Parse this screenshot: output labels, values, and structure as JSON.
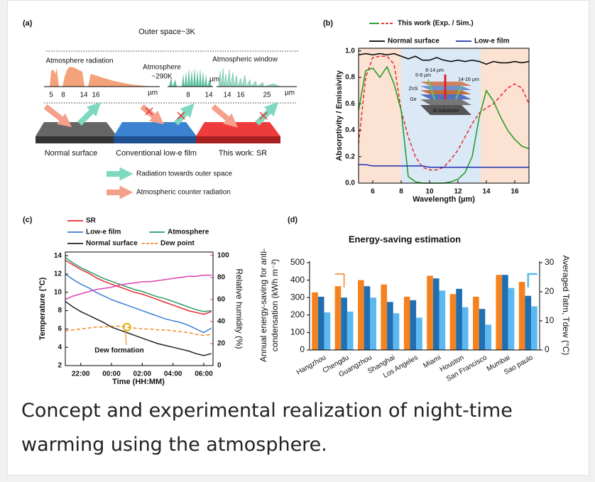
{
  "figure_a": {
    "panel_label": "(a)",
    "title": "Outer space~3K",
    "labels": {
      "atm_radiation": "Atmosphere radiation",
      "atmosphere": "Atmosphere",
      "atm_temp": "~290K",
      "window": "Atmospheric window"
    },
    "axis1": [
      "5",
      "8",
      "14",
      "16",
      "µm"
    ],
    "axis2": [
      "8",
      "14",
      "µm"
    ],
    "axis3": [
      "14",
      "16",
      "25",
      "µm"
    ],
    "surfaces": [
      "Normal surface",
      "Conventional low-e film",
      "This work: SR"
    ],
    "legend": [
      "Radiation towards outer space",
      "Atmospheric counter radiation"
    ]
  },
  "chart_data": [
    {
      "type": "line",
      "panel_label": "(b)",
      "xlabel": "Wavelength (µm)",
      "ylabel": "Absorptivity / Emissivity",
      "x": [
        5,
        5.5,
        6,
        6.5,
        7,
        7.5,
        8,
        8.5,
        9,
        9.5,
        10,
        10.5,
        11,
        11.5,
        12,
        12.5,
        13,
        13.5,
        14,
        14.5,
        15,
        15.5,
        16,
        16.5,
        17
      ],
      "xlim": [
        5,
        17
      ],
      "xticks": [
        6,
        8,
        10,
        12,
        14,
        16
      ],
      "ylim": [
        0,
        1.02
      ],
      "yticks": [
        {
          "value": 0,
          "label": "0.0"
        },
        0.2,
        0.4,
        0.6,
        0.8,
        {
          "value": 1,
          "label": "1.0"
        }
      ],
      "bands": [
        {
          "range": [
            5,
            8
          ],
          "color": "#fbe2d2"
        },
        {
          "range": [
            8,
            13.6
          ],
          "color": "#dbe8f5"
        },
        {
          "range": [
            13.6,
            17
          ],
          "color": "#fbe2d2"
        }
      ],
      "series": [
        {
          "name": "This work (Exp. / Sim.)",
          "color": "#1e9a1e",
          "values": [
            0.55,
            0.85,
            0.87,
            0.8,
            0.88,
            0.75,
            0.55,
            0.05,
            0.01,
            0,
            0,
            0,
            0,
            0.01,
            0.03,
            0.08,
            0.2,
            0.5,
            0.7,
            0.62,
            0.5,
            0.4,
            0.33,
            0.28,
            0.26
          ],
          "sim_color": "#e8262a",
          "sim_values": [
            0.3,
            0.8,
            0.95,
            0.96,
            0.96,
            0.9,
            0.55,
            0.35,
            0.2,
            0.12,
            0.1,
            0.1,
            0.12,
            0.18,
            0.25,
            0.35,
            0.45,
            0.53,
            0.57,
            0.6,
            0.66,
            0.72,
            0.75,
            0.72,
            0.6
          ]
        },
        {
          "name": "Normal surface",
          "color": "#000000",
          "values": [
            0.97,
            0.98,
            0.97,
            0.98,
            0.97,
            0.98,
            0.96,
            0.94,
            0.96,
            0.93,
            0.93,
            0.95,
            0.93,
            0.92,
            0.93,
            0.92,
            0.93,
            0.92,
            0.9,
            0.92,
            0.91,
            0.91,
            0.92,
            0.91,
            0.92
          ]
        },
        {
          "name": "Low-e film",
          "color": "#1f2fb0",
          "values": [
            0.14,
            0.14,
            0.13,
            0.13,
            0.13,
            0.13,
            0.13,
            0.13,
            0.13,
            0.13,
            0.12,
            0.12,
            0.12,
            0.12,
            0.12,
            0.12,
            0.12,
            0.12,
            0.12,
            0.12,
            0.12,
            0.12,
            0.12,
            0.12,
            0.12
          ]
        }
      ],
      "inset_labels": [
        "8-14 µm",
        "5-8 µm",
        "14-16 µm",
        "ZnS",
        "Ge",
        "Si substrate"
      ]
    },
    {
      "type": "line",
      "panel_label": "(c)",
      "xlabel": "Time (HH:MM)",
      "ylabel": "Temperature (°C)",
      "y2label": "Relative humidity (%)",
      "y2label_color": "#e040b0",
      "legend_text_colored": true,
      "x": [
        21,
        21.5,
        22,
        22.5,
        23,
        23.5,
        24,
        24.5,
        25,
        25.5,
        26,
        26.5,
        27,
        27.5,
        28,
        28.5,
        29,
        29.5,
        30,
        30.5
      ],
      "xlim": [
        21,
        30.6
      ],
      "xticks": [
        {
          "value": 22,
          "label": "22:00"
        },
        {
          "value": 24,
          "label": "00:00"
        },
        {
          "value": 26,
          "label": "02:00"
        },
        {
          "value": 28,
          "label": "04:00"
        },
        {
          "value": 30,
          "label": "06:00"
        }
      ],
      "ylim": [
        2,
        14.4
      ],
      "yticks": [
        2,
        4,
        6,
        8,
        10,
        12,
        14
      ],
      "y2lim": [
        0,
        103
      ],
      "y2ticks": [
        0,
        20,
        40,
        60,
        80,
        100
      ],
      "series": [
        {
          "name": "SR",
          "color": "#e8262a",
          "values": [
            13.5,
            13.0,
            12.5,
            12.1,
            11.6,
            11.2,
            10.9,
            10.6,
            10.3,
            10.0,
            9.8,
            9.5,
            9.2,
            8.9,
            8.6,
            8.3,
            8.0,
            7.8,
            7.6,
            7.9
          ]
        },
        {
          "name": "Low-e film",
          "color": "#3a7fd5",
          "values": [
            12.0,
            11.4,
            10.9,
            10.5,
            10.0,
            9.6,
            9.2,
            8.9,
            8.6,
            8.3,
            8.0,
            7.7,
            7.4,
            7.1,
            6.9,
            6.7,
            6.4,
            6.0,
            5.6,
            6.1
          ]
        },
        {
          "name": "Atmosphere",
          "color": "#2a9a6a",
          "values": [
            13.8,
            13.2,
            12.7,
            12.3,
            11.9,
            11.5,
            11.2,
            10.9,
            10.6,
            10.3,
            10.1,
            9.8,
            9.5,
            9.3,
            9.0,
            8.7,
            8.4,
            8.1,
            7.9,
            8.0
          ]
        },
        {
          "name": "Normal surface",
          "color": "#222222",
          "values": [
            9.0,
            8.4,
            7.9,
            7.5,
            7.1,
            6.7,
            6.2,
            5.9,
            5.6,
            5.3,
            5.0,
            4.7,
            4.4,
            4.2,
            4.0,
            3.8,
            3.6,
            3.3,
            3.1,
            3.3
          ]
        },
        {
          "name": "Dew point",
          "color": "#f08a24",
          "style": "dashed",
          "values": [
            5.8,
            5.9,
            6.0,
            6.1,
            6.2,
            6.2,
            6.3,
            6.3,
            6.2,
            6.1,
            6.0,
            6.0,
            5.9,
            5.9,
            5.8,
            5.7,
            5.6,
            5.4,
            5.3,
            5.4
          ]
        },
        {
          "color": "#e040b0",
          "axis": "y2",
          "values": [
            60,
            63,
            65,
            67,
            69,
            70,
            71,
            73,
            74,
            75,
            76,
            76,
            77,
            78,
            79,
            80,
            81,
            81,
            82,
            82
          ]
        }
      ],
      "annotation": {
        "text": "Dew formation",
        "x": 25,
        "color": "#f08a24"
      }
    },
    {
      "type": "bar",
      "panel_label": "(d)",
      "title": "Energy-saving estimation",
      "ylabel": [
        "Annual energy-saving for anti-",
        "condensation (kWh m⁻²)"
      ],
      "ylabel_color": "#f5821f",
      "y2label": "Averaged Tatm, Tdew (°C)",
      "categories": [
        "Hangzhou",
        "Chengdu",
        "Guangzhou",
        "Shanghai",
        "Los Angeles",
        "Miami",
        "Houston",
        "San Francisco",
        "Mumbai",
        "Sao paulo"
      ],
      "ylim": [
        0,
        500
      ],
      "yticks": [
        0,
        100,
        200,
        300,
        400,
        500
      ],
      "y2lim": [
        0,
        30
      ],
      "y2ticks": [
        0,
        10,
        20,
        30
      ],
      "series": [
        {
          "color": "#f5821f",
          "values": [
            330,
            365,
            400,
            375,
            305,
            425,
            320,
            305,
            430,
            390
          ]
        },
        {
          "color": "#1f6fb2",
          "axis": "y2",
          "values": [
            18.3,
            18,
            21.9,
            16.5,
            17.1,
            24.6,
            21,
            14.1,
            25.8,
            18.6
          ]
        },
        {
          "color": "#5bb8f0",
          "axis": "y2",
          "values": [
            12.9,
            13.2,
            18,
            12.6,
            11.1,
            20.4,
            14.7,
            8.7,
            21.3,
            15
          ]
        }
      ]
    }
  ],
  "caption": "Concept and experimental realization of night-time warming using the atmosphere."
}
